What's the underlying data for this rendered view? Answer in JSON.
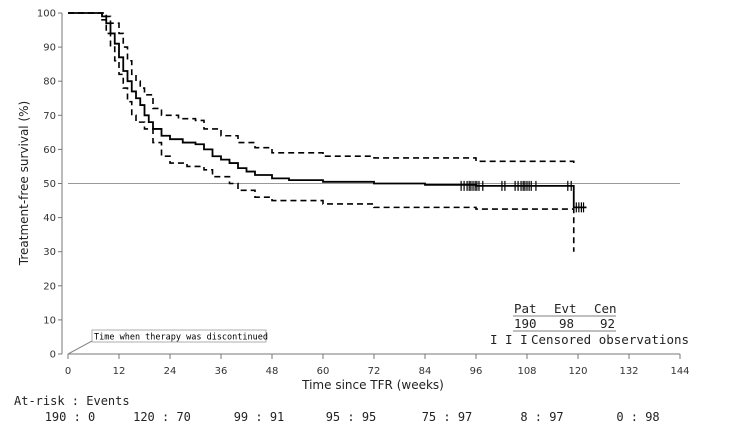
{
  "chart_data": {
    "type": "line",
    "title": "",
    "xlabel": "Time since TFR (weeks)",
    "ylabel": "Treatment-free survival (%)",
    "xlim": [
      0,
      144
    ],
    "ylim": [
      0,
      100
    ],
    "xticks": [
      0,
      12,
      24,
      36,
      48,
      60,
      72,
      84,
      96,
      108,
      120,
      132,
      144
    ],
    "yticks": [
      0,
      10,
      20,
      30,
      40,
      50,
      60,
      70,
      80,
      90,
      100
    ],
    "reference_line_y": 50,
    "series": [
      {
        "style": "solid-step",
        "color": "#000000",
        "x": [
          0,
          7,
          8,
          9,
          10,
          11,
          12,
          13,
          14,
          15,
          16,
          17,
          18,
          19,
          20,
          22,
          24,
          27,
          30,
          32,
          34,
          36,
          38,
          40,
          42,
          44,
          48,
          52,
          60,
          72,
          84,
          96,
          119,
          122
        ],
        "y": [
          100,
          100,
          99,
          97,
          94,
          91,
          87,
          83,
          80,
          77,
          75,
          73,
          70,
          68,
          66,
          64,
          63,
          62,
          61.5,
          60,
          58,
          57,
          56,
          54.5,
          53.5,
          52.5,
          51.5,
          51,
          50.5,
          50,
          49.6,
          49.3,
          43,
          43
        ]
      },
      {
        "style": "dashed-step",
        "color": "#000000",
        "x": [
          0,
          8,
          9,
          10,
          12,
          13,
          14,
          15,
          16,
          17,
          18,
          20,
          22,
          26,
          30,
          32,
          36,
          40,
          44,
          48,
          60,
          72,
          96,
          119
        ],
        "y": [
          100,
          100,
          99,
          97,
          94,
          90,
          86,
          82,
          80,
          78,
          76,
          72,
          70,
          69,
          68.5,
          66,
          64,
          62,
          60.5,
          59,
          58,
          57.5,
          56.5,
          56
        ]
      },
      {
        "style": "dashed-step",
        "color": "#000000",
        "x": [
          0,
          7,
          8,
          9,
          10,
          11,
          12,
          13,
          14,
          15,
          16,
          18,
          20,
          22,
          24,
          28,
          32,
          34,
          38,
          40,
          44,
          48,
          60,
          72,
          96,
          119,
          119
        ],
        "y": [
          100,
          100,
          98,
          94,
          90,
          86,
          82,
          78,
          74,
          70,
          68,
          66,
          62,
          58,
          56,
          55,
          54,
          52,
          50,
          48,
          46,
          45,
          44,
          43,
          42.5,
          42,
          30
        ]
      }
    ],
    "censored": {
      "at_upper": {
        "y": 49.3,
        "x": [
          92.5,
          93.2,
          93.9,
          94.4,
          94.8,
          95.3,
          95.8,
          96.2,
          96.7,
          97.6,
          102.1,
          102.8,
          105.2,
          105.9,
          106.6,
          107.1,
          107.5,
          108,
          108.5,
          109,
          110.1,
          117.6,
          118.4
        ]
      },
      "at_lower": {
        "y": 43,
        "x": [
          119.6,
          120.2,
          120.8,
          121.3
        ]
      }
    },
    "annotation": "Time when therapy was discontinued",
    "legend": {
      "headers": [
        "Pat",
        "Evt",
        "Cen"
      ],
      "values": [
        "190",
        "98",
        "92"
      ],
      "censor_symbol": "I I I",
      "censor_label": "Censored observations",
      "placement": "bottom-right"
    },
    "at_risk": {
      "label": "At-risk : Events",
      "values": [
        "190 : 0",
        "120 : 70",
        "99 : 91",
        "95 : 95",
        "75 : 97",
        "8 : 97",
        "0 : 98"
      ]
    }
  }
}
